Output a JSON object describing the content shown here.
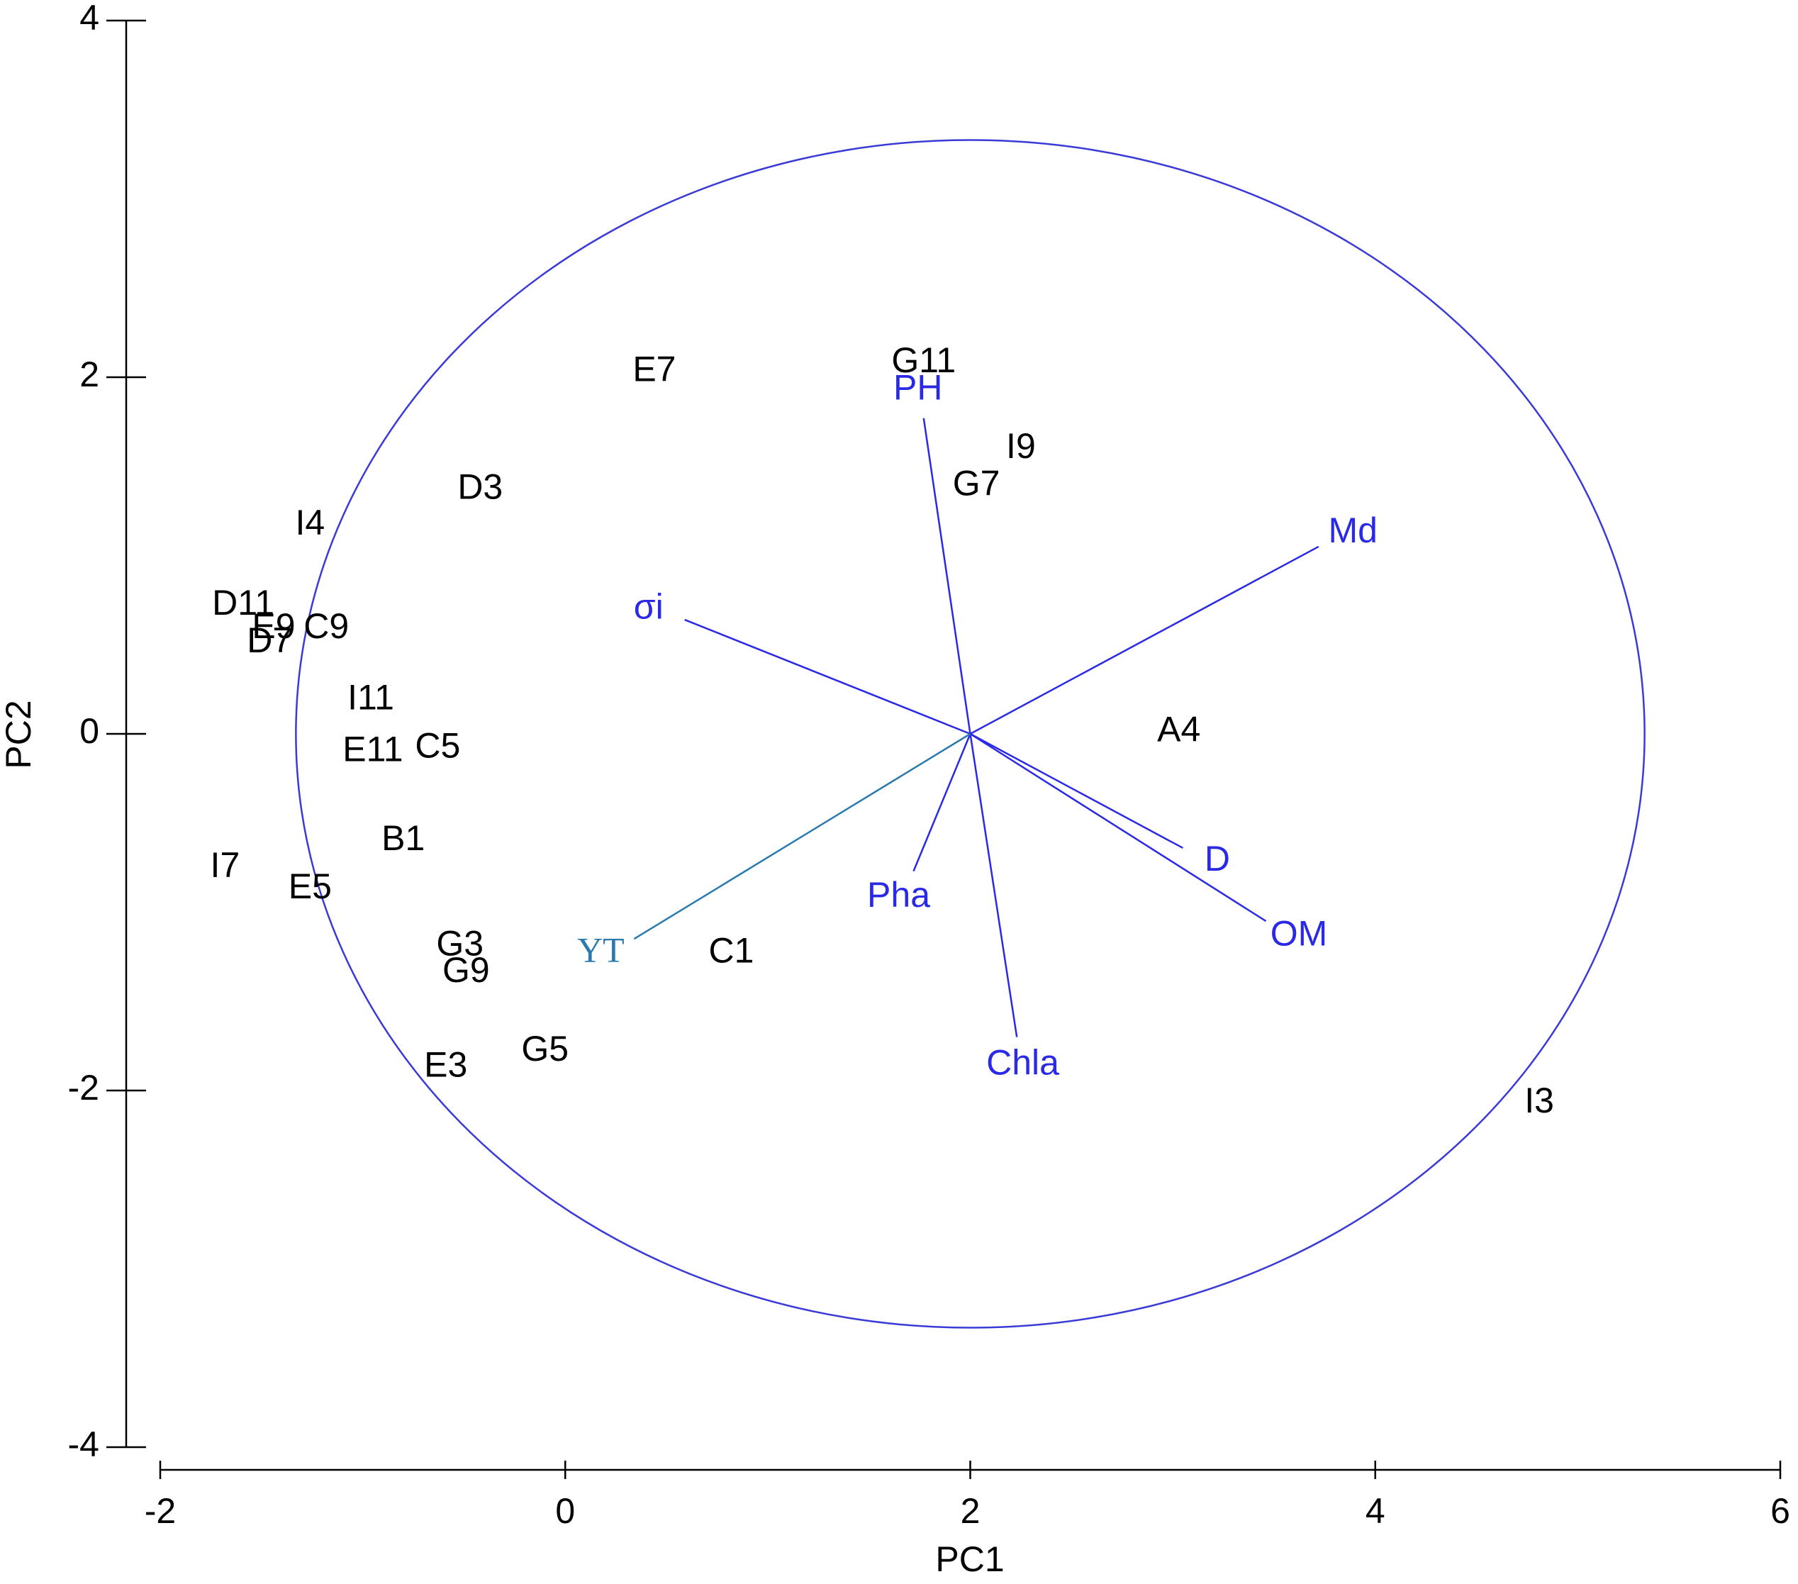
{
  "chart_data": {
    "type": "biplot",
    "x_label": "PC1",
    "y_label": "PC2",
    "xlim": [
      -2,
      6
    ],
    "ylim": [
      -4,
      4
    ],
    "xticks": [
      -2,
      0,
      2,
      4,
      6
    ],
    "yticks": [
      -4,
      -2,
      0,
      2,
      4
    ],
    "point_color": "#000000",
    "samples": {
      "labels": [
        "E7",
        "G11",
        "I9",
        "G7",
        "D3",
        "I4",
        "D11",
        "E9",
        "C9",
        "D7",
        "I11",
        "E11",
        "C5",
        "A4",
        "B1",
        "I7",
        "E5",
        "G3",
        "G9",
        "C1",
        "G5",
        "E3",
        "I3"
      ],
      "x": [
        0.44,
        1.77,
        2.25,
        2.03,
        -0.42,
        -1.26,
        -1.59,
        -1.44,
        -1.18,
        -1.46,
        -0.96,
        -0.95,
        -0.63,
        3.03,
        -0.8,
        -1.68,
        -1.26,
        -0.52,
        -0.49,
        0.82,
        -0.1,
        -0.59,
        4.81
      ],
      "y": [
        2.03,
        2.08,
        1.6,
        1.39,
        1.37,
        1.17,
        0.72,
        0.59,
        0.59,
        0.51,
        0.19,
        -0.1,
        -0.08,
        0.01,
        -0.6,
        -0.75,
        -0.87,
        -1.19,
        -1.34,
        -1.23,
        -1.78,
        -1.87,
        -2.07
      ]
    },
    "vector_origin": [
      2,
      0
    ],
    "vectors": [
      {
        "name": "PH",
        "x": 1.77,
        "y": 1.77,
        "color": "#2a2ae6"
      },
      {
        "name": "Md",
        "x": 3.72,
        "y": 1.05,
        "color": "#2a2ae6"
      },
      {
        "name": "σi",
        "x": 0.59,
        "y": 0.64,
        "color": "#2a2ae6"
      },
      {
        "name": "D",
        "x": 3.05,
        "y": -0.64,
        "color": "#2a2ae6"
      },
      {
        "name": "OM",
        "x": 3.46,
        "y": -1.05,
        "color": "#2a2ae6"
      },
      {
        "name": "Chla",
        "x": 2.23,
        "y": -1.7,
        "color": "#2a2ae6"
      },
      {
        "name": "Pha",
        "x": 1.72,
        "y": -0.77,
        "color": "#2a2ae6"
      },
      {
        "name": "YT",
        "x": 0.34,
        "y": -1.15,
        "color": "#2a7ab0"
      }
    ],
    "circle": {
      "center": [
        2,
        0
      ],
      "radius": 3.33,
      "color": "#3a3ad8"
    }
  }
}
